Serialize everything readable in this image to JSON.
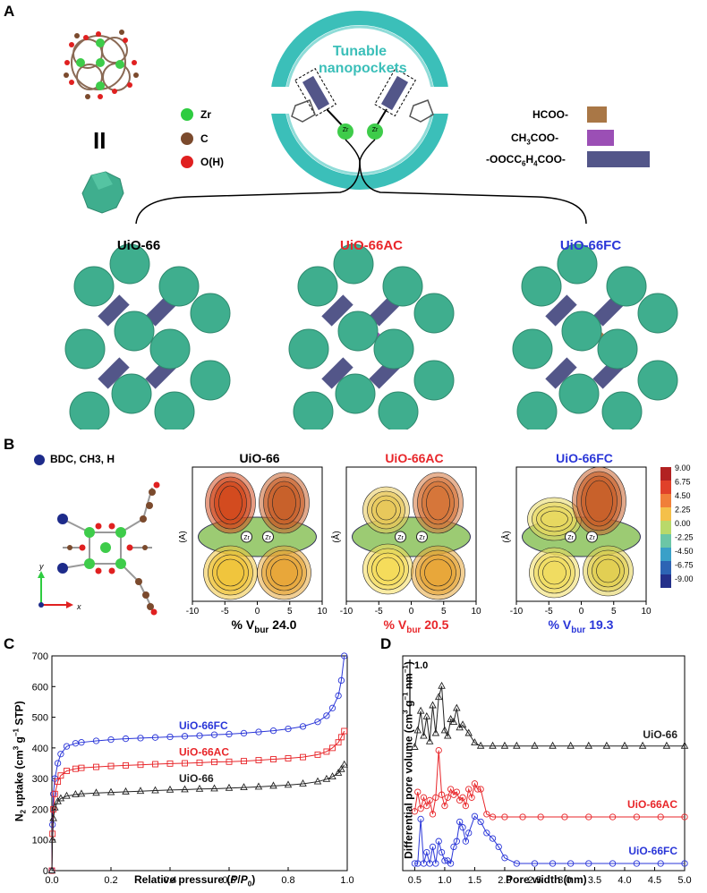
{
  "panels": {
    "a": "A",
    "b": "B",
    "c": "C",
    "d": "D"
  },
  "panelA": {
    "ring_label_line1": "Tunable",
    "ring_label_line2": "nanopockets",
    "equals_sign": "II",
    "ring_zr1": "Zr",
    "ring_zr2": "Zr",
    "atom_legend": [
      {
        "label": "Zr",
        "color": "#2ecc40"
      },
      {
        "label": "C",
        "color": "#7b4a2d"
      },
      {
        "label": "O(H)",
        "color": "#e02020"
      }
    ],
    "linker_legend": [
      {
        "label": "HCOO-",
        "color": "#a97746"
      },
      {
        "label": "CH3COO-",
        "color": "#9b4fb5"
      },
      {
        "label": "-OOCC6H4COO-",
        "color": "#535689"
      }
    ],
    "framework_titles": [
      {
        "label": "UiO-66",
        "color": "#000000"
      },
      {
        "label": "UiO-66AC",
        "color": "#e8262a"
      },
      {
        "label": "UiO-66FC",
        "color": "#2a36d8"
      }
    ],
    "colors": {
      "cluster": "#3fae8e",
      "ring": "#3bbfb9",
      "ring_text": "#3bbfb9"
    }
  },
  "panelB": {
    "legend_label": "BDC, CH3, H",
    "axis_x": "x",
    "axis_y": "y",
    "maps": [
      {
        "title": "UiO-66",
        "title_color": "#000000",
        "vbur_prefix": "% V",
        "vbur_sub": "bur",
        "vbur_value": "24.0"
      },
      {
        "title": "UiO-66AC",
        "title_color": "#e8262a",
        "vbur_prefix": "% V",
        "vbur_sub": "bur",
        "vbur_value": "20.5"
      },
      {
        "title": "UiO-66FC",
        "title_color": "#2a36d8",
        "vbur_prefix": "% V",
        "vbur_sub": "bur",
        "vbur_value": "19.3"
      }
    ],
    "map_ylabel": "(Å)",
    "zr": "Zr",
    "x_ticks": [
      "-10",
      "-5",
      "0",
      "5",
      "10"
    ],
    "colorbar_ticks": [
      "9.00",
      "6.75",
      "4.50",
      "2.25",
      "0.00",
      "-2.25",
      "-4.50",
      "-6.75",
      "-9.00"
    ]
  },
  "chart_data": [
    {
      "type": "line",
      "panel": "C",
      "xlabel": "Relative pressure (P/P0)",
      "ylabel": "N2 uptake (cm3 g−1 STP)",
      "xlim": [
        0,
        1.0
      ],
      "ylim": [
        0,
        700
      ],
      "x_ticks": [
        "0.0",
        "0.2",
        "0.4",
        "0.6",
        "0.8",
        "1.0"
      ],
      "y_ticks": [
        "0",
        "100",
        "200",
        "300",
        "400",
        "500",
        "600",
        "700"
      ],
      "series": [
        {
          "name": "UiO-66FC",
          "color": "#2a36d8",
          "marker": "circle",
          "x": [
            0.0,
            0.002,
            0.005,
            0.01,
            0.02,
            0.03,
            0.05,
            0.08,
            0.1,
            0.15,
            0.2,
            0.25,
            0.3,
            0.35,
            0.4,
            0.45,
            0.5,
            0.55,
            0.6,
            0.65,
            0.7,
            0.75,
            0.8,
            0.85,
            0.9,
            0.93,
            0.95,
            0.97,
            0.98,
            0.99
          ],
          "y": [
            0,
            150,
            250,
            300,
            350,
            380,
            405,
            415,
            418,
            423,
            427,
            430,
            432,
            434,
            436,
            438,
            440,
            443,
            445,
            448,
            452,
            456,
            462,
            470,
            485,
            505,
            530,
            570,
            620,
            700
          ]
        },
        {
          "name": "UiO-66AC",
          "color": "#e8262a",
          "marker": "square",
          "x": [
            0.0,
            0.002,
            0.005,
            0.01,
            0.02,
            0.03,
            0.05,
            0.08,
            0.1,
            0.15,
            0.2,
            0.25,
            0.3,
            0.35,
            0.4,
            0.45,
            0.5,
            0.55,
            0.6,
            0.65,
            0.7,
            0.75,
            0.8,
            0.85,
            0.9,
            0.93,
            0.95,
            0.97,
            0.98,
            0.99
          ],
          "y": [
            0,
            120,
            200,
            250,
            290,
            310,
            325,
            332,
            335,
            338,
            341,
            343,
            345,
            347,
            349,
            350,
            352,
            354,
            355,
            357,
            360,
            363,
            366,
            370,
            378,
            388,
            400,
            418,
            435,
            455
          ]
        },
        {
          "name": "UiO-66",
          "color": "#222222",
          "marker": "triangle",
          "x": [
            0.0,
            0.002,
            0.005,
            0.01,
            0.02,
            0.03,
            0.05,
            0.08,
            0.1,
            0.15,
            0.2,
            0.25,
            0.3,
            0.35,
            0.4,
            0.45,
            0.5,
            0.55,
            0.6,
            0.65,
            0.7,
            0.75,
            0.8,
            0.85,
            0.9,
            0.93,
            0.95,
            0.97,
            0.98,
            0.99
          ],
          "y": [
            0,
            100,
            170,
            205,
            225,
            235,
            243,
            248,
            250,
            253,
            255,
            257,
            259,
            261,
            263,
            264,
            266,
            267,
            269,
            271,
            273,
            276,
            279,
            283,
            290,
            298,
            306,
            318,
            330,
            345
          ]
        }
      ]
    },
    {
      "type": "line",
      "panel": "D",
      "xlabel": "Pore width (nm)",
      "ylabel": "Differential pore volume (cm3 g−1 nm−1)",
      "xlim": [
        0.3,
        5.0
      ],
      "x_ticks": [
        "0.5",
        "1.0",
        "1.5",
        "2.0",
        "2.5",
        "3.0",
        "3.5",
        "4.0",
        "4.5",
        "5.0"
      ],
      "scale_bar_label": "1.0",
      "series": [
        {
          "name": "UiO-66",
          "color": "#222222",
          "marker": "triangle",
          "x": [
            0.5,
            0.55,
            0.6,
            0.65,
            0.7,
            0.75,
            0.8,
            0.85,
            0.9,
            0.95,
            1.0,
            1.05,
            1.1,
            1.15,
            1.2,
            1.25,
            1.3,
            1.4,
            1.5,
            1.6,
            1.8,
            2.0,
            2.2,
            2.5,
            2.8,
            3.1,
            3.4,
            3.7,
            4.0,
            4.3,
            4.7,
            5.0
          ],
          "y": [
            0.0,
            0.3,
            0.65,
            0.2,
            0.55,
            0.1,
            0.75,
            0.25,
            0.9,
            1.1,
            0.3,
            0.2,
            0.5,
            0.45,
            0.7,
            0.35,
            0.4,
            0.25,
            0.08,
            0.02,
            0.02,
            0.02,
            0.02,
            0.02,
            0.02,
            0.02,
            0.02,
            0.02,
            0.02,
            0.02,
            0.02,
            0.02
          ]
        },
        {
          "name": "UiO-66AC",
          "color": "#e8262a",
          "marker": "circle",
          "x": [
            0.5,
            0.55,
            0.6,
            0.65,
            0.7,
            0.75,
            0.8,
            0.85,
            0.9,
            0.95,
            1.0,
            1.05,
            1.1,
            1.15,
            1.2,
            1.25,
            1.3,
            1.35,
            1.4,
            1.45,
            1.5,
            1.55,
            1.6,
            1.7,
            1.8,
            2.0,
            2.3,
            2.6,
            3.0,
            3.4,
            3.8,
            4.2,
            4.6,
            5.0
          ],
          "y": [
            0.1,
            0.45,
            0.15,
            0.35,
            0.2,
            0.3,
            0.05,
            0.35,
            1.2,
            0.4,
            0.2,
            0.35,
            0.5,
            0.4,
            0.45,
            0.3,
            0.35,
            0.2,
            0.5,
            0.35,
            0.6,
            0.5,
            0.5,
            0.05,
            0.0,
            0.0,
            0.0,
            0.0,
            0.0,
            0.0,
            0.0,
            0.0,
            0.0,
            0.0
          ]
        },
        {
          "name": "UiO-66FC",
          "color": "#2a36d8",
          "marker": "circle",
          "x": [
            0.5,
            0.55,
            0.6,
            0.65,
            0.7,
            0.75,
            0.8,
            0.85,
            0.9,
            0.95,
            1.0,
            1.05,
            1.1,
            1.15,
            1.2,
            1.25,
            1.3,
            1.35,
            1.4,
            1.5,
            1.6,
            1.7,
            1.8,
            1.9,
            2.0,
            2.2,
            2.5,
            2.8,
            3.1,
            3.4,
            3.8,
            4.2,
            4.6,
            5.0
          ],
          "y": [
            0.0,
            0.0,
            0.8,
            0.0,
            0.2,
            0.0,
            0.3,
            0.0,
            0.4,
            0.2,
            0.05,
            0.05,
            0.0,
            0.3,
            0.4,
            0.75,
            0.65,
            0.4,
            0.55,
            0.85,
            0.75,
            0.55,
            0.45,
            0.3,
            0.1,
            0.0,
            0.0,
            0.0,
            0.0,
            0.0,
            0.0,
            0.0,
            0.0,
            0.0
          ]
        }
      ]
    }
  ]
}
